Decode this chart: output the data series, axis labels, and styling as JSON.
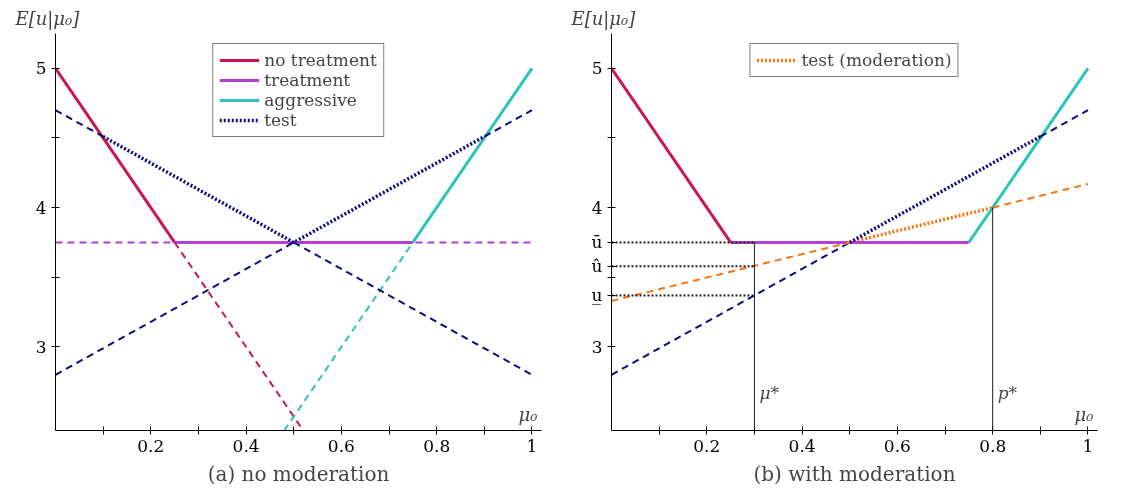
{
  "chart_data": [
    {
      "type": "line",
      "title": "(a) no moderation",
      "xlabel": "μ₀",
      "ylabel": "E[u|μ₀]",
      "xlim": [
        0,
        1.02
      ],
      "ylim": [
        2.4,
        5.25
      ],
      "xticks": [
        {
          "value": 0.1,
          "label": null
        },
        0.2,
        {
          "value": 0.3,
          "label": null
        },
        0.4,
        {
          "value": 0.5,
          "label": null
        },
        0.6,
        {
          "value": 0.7,
          "label": null
        },
        0.8,
        {
          "value": 0.9,
          "label": null
        },
        1
      ],
      "yticks": [
        3,
        {
          "value": 3.5,
          "label": null
        },
        4,
        {
          "value": 4.5,
          "label": null
        },
        5
      ],
      "legend": "top",
      "series": [
        {
          "name": "no treatment",
          "color": "#c8174f",
          "line_style": "solid",
          "x": [
            0,
            0.25
          ],
          "values": [
            5,
            3.75
          ]
        },
        {
          "name": "treatment",
          "color": "#b43fd4",
          "line_style": "solid",
          "x": [
            0.25,
            0.75
          ],
          "values": [
            3.75,
            3.75
          ]
        },
        {
          "name": "aggressive",
          "color": "#2cc4b9",
          "line_style": "solid",
          "x": [
            0.75,
            1
          ],
          "values": [
            3.75,
            5
          ]
        },
        {
          "name": "test",
          "color": "#0b0b7a",
          "line_style": "dotted",
          "x": [
            0.1,
            0.5,
            0.9
          ],
          "values": [
            4.51,
            3.75,
            4.51
          ]
        },
        {
          "color": "#c8174f",
          "line_style": "dashed",
          "x": [
            0.25,
            0.52
          ],
          "values": [
            3.75,
            2.4
          ]
        },
        {
          "color": "#b43fd4",
          "line_style": "dashed",
          "x": [
            0,
            1
          ],
          "values": [
            3.75,
            3.75
          ]
        },
        {
          "color": "#2cc4b9",
          "line_style": "dashed",
          "x": [
            0.48,
            0.75
          ],
          "values": [
            2.4,
            3.75
          ]
        },
        {
          "color": "#0b0b7a",
          "line_style": "dashed",
          "x": [
            0,
            0.1
          ],
          "values": [
            4.7,
            4.51
          ]
        },
        {
          "color": "#0b0b7a",
          "line_style": "dashed",
          "x": [
            0.5,
            1
          ],
          "values": [
            3.75,
            2.8
          ]
        },
        {
          "color": "#0b0b7a",
          "line_style": "dashed",
          "x": [
            0,
            0.5
          ],
          "values": [
            2.8,
            3.75
          ]
        },
        {
          "color": "#0b0b7a",
          "line_style": "dashed",
          "x": [
            0.9,
            1
          ],
          "values": [
            4.51,
            4.7
          ]
        }
      ]
    },
    {
      "type": "line",
      "title": "(b) with moderation",
      "xlabel": "μ₀",
      "ylabel": "E[u|μ₀]",
      "xlim": [
        0,
        1.02
      ],
      "ylim": [
        2.4,
        5.25
      ],
      "xticks": [
        {
          "value": 0.1,
          "label": null
        },
        0.2,
        {
          "value": 0.3,
          "label": null
        },
        0.4,
        {
          "value": 0.5,
          "label": null
        },
        0.6,
        {
          "value": 0.7,
          "label": null
        },
        0.8,
        {
          "value": 0.9,
          "label": null
        },
        1
      ],
      "yticks": [
        3,
        {
          "value": 3.37,
          "label": "u̲"
        },
        {
          "value": 3.5,
          "label": null
        },
        {
          "value": 3.58,
          "label": "û"
        },
        {
          "value": 3.75,
          "label": "ū"
        },
        4,
        {
          "value": 4.5,
          "label": null
        },
        5
      ],
      "legend": "top",
      "series": [
        {
          "name": "test (moderation)",
          "color": "#f7760f",
          "line_style": "dotted",
          "x": [
            0.5,
            0.8
          ],
          "values": [
            3.75,
            4.0
          ]
        },
        {
          "color": "#c8174f",
          "line_style": "solid",
          "x": [
            0,
            0.25
          ],
          "values": [
            5,
            3.75
          ]
        },
        {
          "color": "#b43fd4",
          "line_style": "solid",
          "x": [
            0.25,
            0.75
          ],
          "values": [
            3.75,
            3.75
          ]
        },
        {
          "color": "#2cc4b9",
          "line_style": "solid",
          "x": [
            0.75,
            1
          ],
          "values": [
            3.75,
            5
          ]
        },
        {
          "color": "#0b0b7a",
          "line_style": "dashed",
          "x": [
            0,
            0.5
          ],
          "values": [
            2.8,
            3.75
          ]
        },
        {
          "color": "#0b0b7a",
          "line_style": "dotted",
          "x": [
            0.5,
            0.9
          ],
          "values": [
            3.75,
            4.51
          ]
        },
        {
          "color": "#0b0b7a",
          "line_style": "dashed",
          "x": [
            0.9,
            1
          ],
          "values": [
            4.51,
            4.7
          ]
        },
        {
          "color": "#f7760f",
          "line_style": "dashed",
          "x": [
            0,
            0.5
          ],
          "values": [
            3.33,
            3.75
          ]
        },
        {
          "color": "#f7760f",
          "line_style": "dashed",
          "x": [
            0.8,
            1
          ],
          "values": [
            4.0,
            4.17
          ]
        },
        {
          "color": "#1c1c1c",
          "line_style": "dotted",
          "x": [
            0,
            0.3
          ],
          "values": [
            3.75,
            3.75
          ]
        },
        {
          "color": "#1c1c1c",
          "line_style": "dotted",
          "x": [
            0,
            0.3
          ],
          "values": [
            3.58,
            3.58
          ]
        },
        {
          "color": "#1c1c1c",
          "line_style": "dotted",
          "x": [
            0,
            0.3
          ],
          "values": [
            3.37,
            3.37
          ]
        },
        {
          "color": "#1c1c1c",
          "line_style": "solid",
          "x": [
            0.3,
            0.3
          ],
          "values": [
            2.4,
            3.75
          ]
        },
        {
          "color": "#1c1c1c",
          "line_style": "solid",
          "x": [
            0.8,
            0.8
          ],
          "values": [
            2.4,
            4.0
          ]
        }
      ],
      "annotations": [
        {
          "text": "μ*",
          "x": 0.3,
          "y": 2.6
        },
        {
          "text": "p*",
          "x": 0.8,
          "y": 2.6
        }
      ]
    }
  ]
}
